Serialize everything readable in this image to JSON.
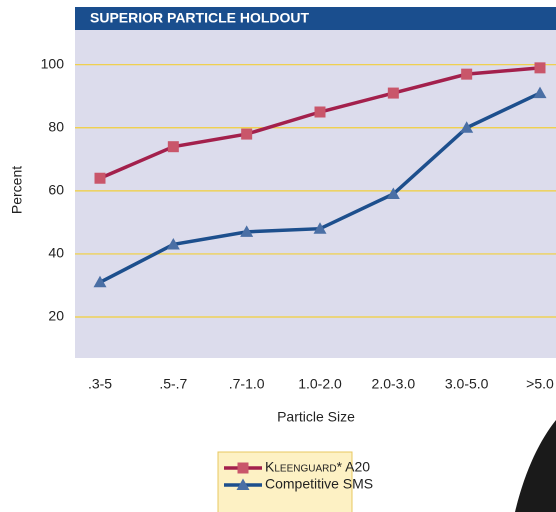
{
  "chart_data": {
    "type": "line",
    "title": "SUPERIOR PARTICLE HOLDOUT",
    "x_label": "Particle Size",
    "y_label": "Percent",
    "categories": [
      ".3-5",
      ".5-.7",
      ".7-1.0",
      "1.0-2.0",
      "2.0-3.0",
      "3.0-5.0",
      ">5.0"
    ],
    "series": [
      {
        "name": "Kleenguard* A20",
        "color": "#a3204c",
        "marker_color": "#c9566a",
        "marker": "square",
        "values": [
          64,
          74,
          78,
          85,
          91,
          97,
          99
        ]
      },
      {
        "name": "Competitive SMS",
        "color": "#1d4f8d",
        "marker_color": "#4a6fa5",
        "marker": "triangle",
        "values": [
          31,
          43,
          47,
          48,
          59,
          80,
          91
        ]
      }
    ],
    "ylim": [
      7,
      111
    ],
    "yticks": [
      20,
      40,
      60,
      80,
      100
    ],
    "grid": true
  }
}
